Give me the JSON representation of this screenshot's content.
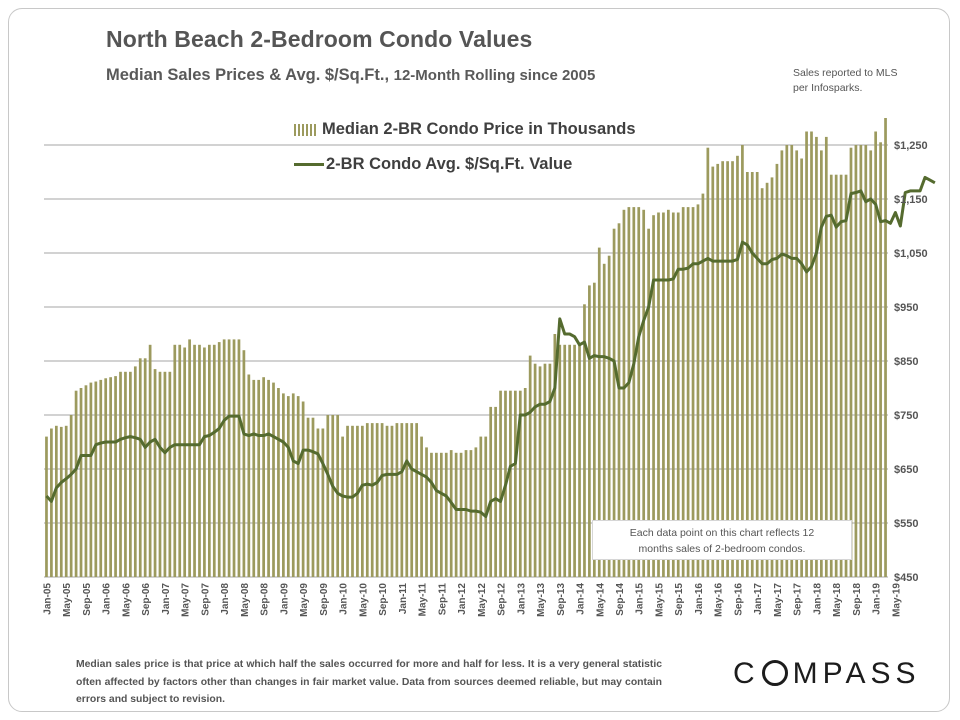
{
  "title": "North Beach 2-Bedroom Condo Values",
  "subtitle_main": "Median Sales Prices & Avg. $/Sq.Ft., ",
  "subtitle_tail": "12-Month Rolling since 2005",
  "source_line1": "Sales reported to MLS",
  "source_line2": "per Infosparks.",
  "note_line1": "Each data point on this chart reflects 12",
  "note_line2": "months sales of 2-bedroom condos.",
  "footnote": "Median sales price is that price at which half the sales occurred for more and half for less. It is a very general statistic often affected by factors other than changes in fair market value. Data from sources deemed reliable, but may contain errors and subject to revision.",
  "logo_left": "C",
  "logo_right": "MPASS",
  "colors": {
    "bar": "#9c9a5e",
    "line": "#556b2f",
    "grid": "#a6a6a6",
    "text": "#555555"
  },
  "chart_data": {
    "type": "bar",
    "title": "North Beach 2-Bedroom Condo Values",
    "ylim": [
      450,
      1300
    ],
    "yticks": [
      450,
      550,
      650,
      750,
      850,
      950,
      1050,
      1150,
      1250
    ],
    "ytick_labels": [
      "$450",
      "$550",
      "$650",
      "$750",
      "$850",
      "$950",
      "$1,050",
      "$1,150",
      "$1,250"
    ],
    "xtick_labels": [
      "Jan-05",
      "May-05",
      "Sep-05",
      "Jan-06",
      "May-06",
      "Sep-06",
      "Jan-07",
      "May-07",
      "Sep-07",
      "Jan-08",
      "May-08",
      "Sep-08",
      "Jan-09",
      "May-09",
      "Sep-09",
      "Jan-10",
      "May-10",
      "Sep-10",
      "Jan-11",
      "May-11",
      "Sep-11",
      "Jan-12",
      "May-12",
      "Sep-12",
      "Jan-13",
      "May-13",
      "Sep-13",
      "Jan-14",
      "May-14",
      "Sep-14",
      "Jan-15",
      "May-15",
      "Sep-15",
      "Jan-16",
      "May-16",
      "Sep-16",
      "Jan-17",
      "May-17",
      "Sep-17",
      "Jan-18",
      "May-18",
      "Sep-18",
      "Jan-19",
      "May-19"
    ],
    "series": [
      {
        "name": "Median 2-BR Condo Price in Thousands",
        "kind": "bar",
        "values": [
          710,
          725,
          730,
          728,
          730,
          750,
          795,
          800,
          805,
          810,
          812,
          815,
          818,
          820,
          822,
          830,
          830,
          830,
          840,
          855,
          855,
          880,
          835,
          830,
          830,
          830,
          880,
          880,
          875,
          890,
          880,
          880,
          875,
          880,
          880,
          885,
          890,
          890,
          890,
          890,
          870,
          825,
          815,
          815,
          820,
          815,
          810,
          800,
          790,
          785,
          790,
          785,
          775,
          745,
          745,
          725,
          725,
          750,
          750,
          750,
          710,
          730,
          730,
          730,
          730,
          735,
          735,
          735,
          735,
          730,
          730,
          735,
          735,
          735,
          735,
          735,
          710,
          690,
          680,
          680,
          680,
          680,
          685,
          680,
          680,
          685,
          685,
          690,
          710,
          710,
          765,
          765,
          795,
          795,
          795,
          795,
          795,
          800,
          860,
          845,
          840,
          845,
          845,
          900,
          880,
          880,
          880,
          880,
          880,
          955,
          990,
          995,
          1060,
          1030,
          1045,
          1095,
          1105,
          1130,
          1135,
          1135,
          1135,
          1130,
          1095,
          1120,
          1125,
          1125,
          1130,
          1125,
          1125,
          1135,
          1135,
          1135,
          1140,
          1160,
          1245,
          1210,
          1215,
          1220,
          1220,
          1220,
          1230,
          1250,
          1200,
          1200,
          1200,
          1170,
          1180,
          1190,
          1215,
          1240,
          1250,
          1250,
          1240,
          1225,
          1275,
          1275,
          1265,
          1240,
          1265,
          1195,
          1195,
          1195,
          1195,
          1245,
          1250,
          1250,
          1250,
          1240,
          1275,
          1255,
          1300
        ]
      },
      {
        "name": "2-BR Condo Avg. $/Sq.Ft. Value",
        "kind": "line",
        "values": [
          600,
          590,
          615,
          625,
          632,
          640,
          650,
          675,
          675,
          675,
          695,
          698,
          700,
          700,
          700,
          705,
          708,
          710,
          708,
          705,
          690,
          700,
          705,
          690,
          680,
          690,
          695,
          695,
          695,
          695,
          695,
          695,
          710,
          712,
          718,
          725,
          740,
          748,
          748,
          748,
          715,
          712,
          715,
          712,
          712,
          715,
          710,
          705,
          700,
          690,
          665,
          660,
          685,
          685,
          682,
          678,
          660,
          640,
          618,
          605,
          600,
          598,
          598,
          605,
          620,
          622,
          620,
          625,
          638,
          640,
          640,
          640,
          645,
          665,
          650,
          645,
          640,
          635,
          625,
          610,
          605,
          600,
          588,
          575,
          575,
          575,
          572,
          572,
          570,
          562,
          590,
          595,
          590,
          620,
          655,
          660,
          750,
          750,
          755,
          765,
          770,
          770,
          775,
          800,
          928,
          900,
          900,
          895,
          880,
          885,
          855,
          860,
          858,
          858,
          855,
          850,
          800,
          800,
          810,
          845,
          895,
          925,
          950,
          1000,
          1000,
          1000,
          1000,
          1002,
          1020,
          1020,
          1022,
          1030,
          1030,
          1035,
          1040,
          1035,
          1035,
          1035,
          1035,
          1035,
          1038,
          1070,
          1065,
          1050,
          1040,
          1030,
          1030,
          1038,
          1040,
          1048,
          1045,
          1040,
          1040,
          1030,
          1015,
          1025,
          1050,
          1098,
          1118,
          1120,
          1098,
          1108,
          1110,
          1160,
          1162,
          1165,
          1145,
          1150,
          1140,
          1108,
          1110,
          1105,
          1125,
          1100,
          1162,
          1165,
          1165,
          1165,
          1190,
          1185,
          1180
        ]
      }
    ]
  }
}
